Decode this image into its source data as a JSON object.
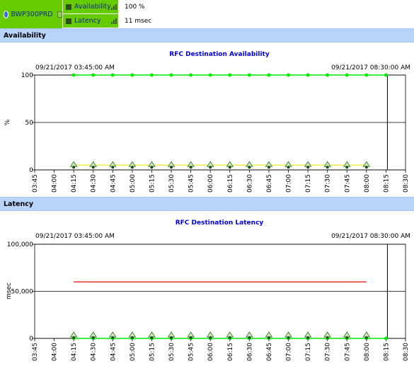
{
  "header": {
    "system_name": "BWP300PRD",
    "metrics": [
      {
        "label": "Availability",
        "value": "100 %"
      },
      {
        "label": "Latency",
        "value": "11 msec"
      }
    ],
    "accent_color": "#66cc00"
  },
  "sections": [
    {
      "title": "Availability"
    },
    {
      "title": "Latency"
    }
  ],
  "chart_data": [
    {
      "type": "line",
      "title": "RFC Destination Availability",
      "start_label": "09/21/2017 03:45:00 AM",
      "end_label": "09/21/2017 08:30:00 AM",
      "ylabel": "%",
      "ylim": [
        0,
        100
      ],
      "yticks": [
        "0",
        "50",
        "100"
      ],
      "x": [
        "03:45",
        "04:00",
        "04:15",
        "04:30",
        "04:45",
        "05:00",
        "05:15",
        "05:30",
        "05:45",
        "06:00",
        "06:15",
        "06:30",
        "06:45",
        "07:00",
        "07:15",
        "07:30",
        "07:45",
        "08:00",
        "08:15",
        "08:30"
      ],
      "series": [
        {
          "color": "#00ee00",
          "values": [
            null,
            null,
            100,
            100,
            100,
            100,
            100,
            100,
            100,
            100,
            100,
            100,
            100,
            100,
            100,
            100,
            100,
            100,
            100,
            null
          ]
        },
        {
          "color": "#eeee44",
          "values": [
            null,
            null,
            5,
            5,
            5,
            5,
            5,
            5,
            5,
            5,
            5,
            5,
            5,
            5,
            5,
            5,
            5,
            5,
            null,
            null
          ]
        },
        {
          "color": "#66aa44",
          "values": [
            null,
            null,
            5,
            5,
            5,
            5,
            5,
            5,
            5,
            5,
            5,
            5,
            5,
            5,
            5,
            5,
            5,
            5,
            null,
            null
          ]
        }
      ],
      "grid": true
    },
    {
      "type": "line",
      "title": "RFC Destination Latency",
      "start_label": "09/21/2017 03:45:00 AM",
      "end_label": "09/21/2017 08:30:00 AM",
      "ylabel": "msec",
      "ylim": [
        0,
        100000
      ],
      "yticks": [
        "0",
        "50,000",
        "100,000"
      ],
      "x": [
        "03:45",
        "04:00",
        "04:15",
        "04:30",
        "04:45",
        "05:00",
        "05:15",
        "05:30",
        "05:45",
        "06:00",
        "06:15",
        "06:30",
        "06:45",
        "07:00",
        "07:15",
        "07:30",
        "07:45",
        "08:00",
        "08:15",
        "08:30"
      ],
      "series": [
        {
          "color": "#ee3333",
          "values": [
            null,
            null,
            60000,
            60000,
            60000,
            60000,
            60000,
            60000,
            60000,
            60000,
            60000,
            60000,
            60000,
            60000,
            60000,
            60000,
            60000,
            60000,
            null,
            null
          ]
        },
        {
          "color": "#00ee00",
          "values": [
            null,
            null,
            11,
            11,
            11,
            11,
            11,
            11,
            11,
            11,
            11,
            11,
            11,
            11,
            11,
            11,
            11,
            11,
            11,
            null
          ]
        },
        {
          "color": "#66aa44",
          "values": [
            null,
            null,
            3000,
            3000,
            3000,
            3000,
            3000,
            3000,
            3000,
            3000,
            3000,
            3000,
            3000,
            3000,
            3000,
            3000,
            3000,
            3000,
            null,
            null
          ]
        }
      ],
      "grid": true
    }
  ]
}
